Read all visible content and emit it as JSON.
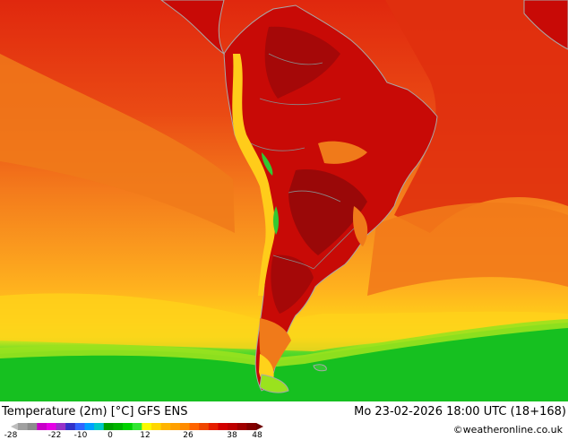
{
  "title": "Temperature (2m) [°C] GFS ENS",
  "datetime": "Mo 23-02-2026 18:00 UTC (18+168)",
  "credit": "©weatheronline.co.uk",
  "legend": {
    "ticks": [
      "-28",
      "-22",
      "-10",
      "0",
      "12",
      "26",
      "38",
      "48"
    ],
    "colors": [
      "#bdbdbd",
      "#a0a0a0",
      "#8c8c8c",
      "#c800c8",
      "#e600e6",
      "#9632c8",
      "#3232c8",
      "#3264ff",
      "#00a0ff",
      "#00c8c8",
      "#00a000",
      "#00b400",
      "#00d200",
      "#32e632",
      "#fafa00",
      "#ffd700",
      "#ffb400",
      "#ffa000",
      "#ff8c00",
      "#ff6400",
      "#f04600",
      "#e61e00",
      "#d20000",
      "#be0000",
      "#a00000",
      "#820000",
      "#6e0000"
    ]
  },
  "colors": {
    "ocean_warm": "#f07a1a",
    "ocean_hot": "#e23a12",
    "ocean_mild": "#ffa21c",
    "ocean_cool": "#ffd21a",
    "ocean_cold": "#23cf23",
    "land_hot": "#c80a06",
    "land_very_hot": "#a50808",
    "coast": "#a8a8a8"
  }
}
